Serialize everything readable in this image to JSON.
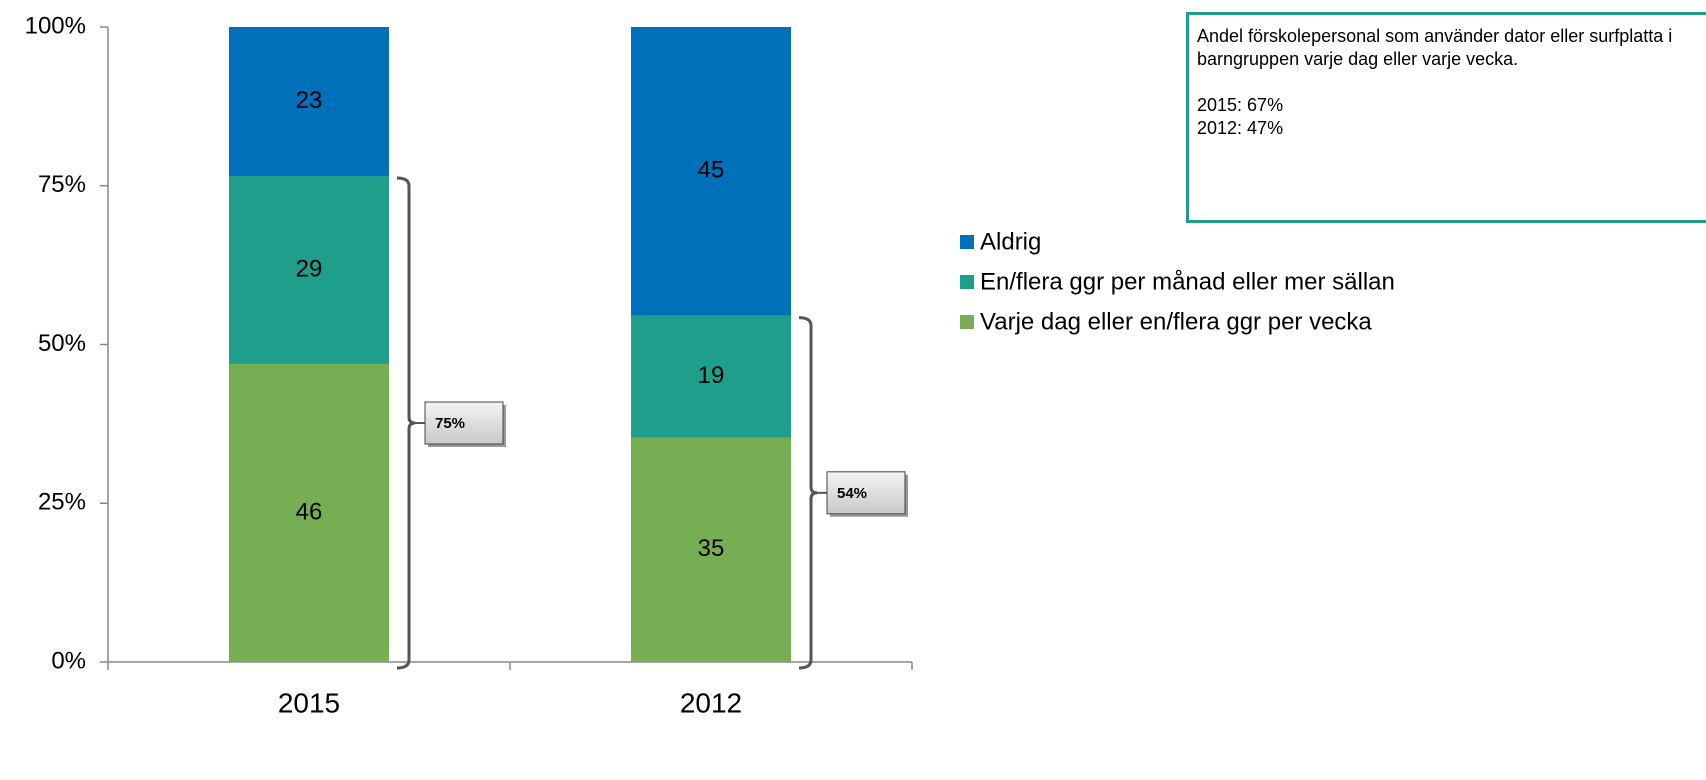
{
  "chart_data": {
    "type": "bar",
    "stacking": "percent",
    "categories": [
      "2015",
      "2012"
    ],
    "series": [
      {
        "name": "Varje dag eller en/flera ggr per vecka",
        "color": "#77ae53",
        "values": [
          46,
          35
        ]
      },
      {
        "name": "En/flera ggr per månad eller mer sällan",
        "color": "#1f9e8c",
        "values": [
          29,
          19
        ]
      },
      {
        "name": "Aldrig",
        "color": "#0070bb",
        "values": [
          23,
          45
        ]
      }
    ],
    "ylim": [
      0,
      100
    ],
    "yticks": [
      {
        "value": 0,
        "label": "0%"
      },
      {
        "value": 25,
        "label": "25%"
      },
      {
        "value": 50,
        "label": "50%"
      },
      {
        "value": 75,
        "label": "75%"
      },
      {
        "value": 100,
        "label": "100%"
      }
    ],
    "brackets": [
      {
        "category": "2015",
        "label": "75%"
      },
      {
        "category": "2012",
        "label": "54%"
      }
    ],
    "note": {
      "text": "Andel förskolepersonal som använder dator eller surfplatta i barngruppen varje dag eller varje vecka.",
      "lines": [
        "2015: 67%",
        "2012: 47%"
      ]
    },
    "legend": "right"
  }
}
